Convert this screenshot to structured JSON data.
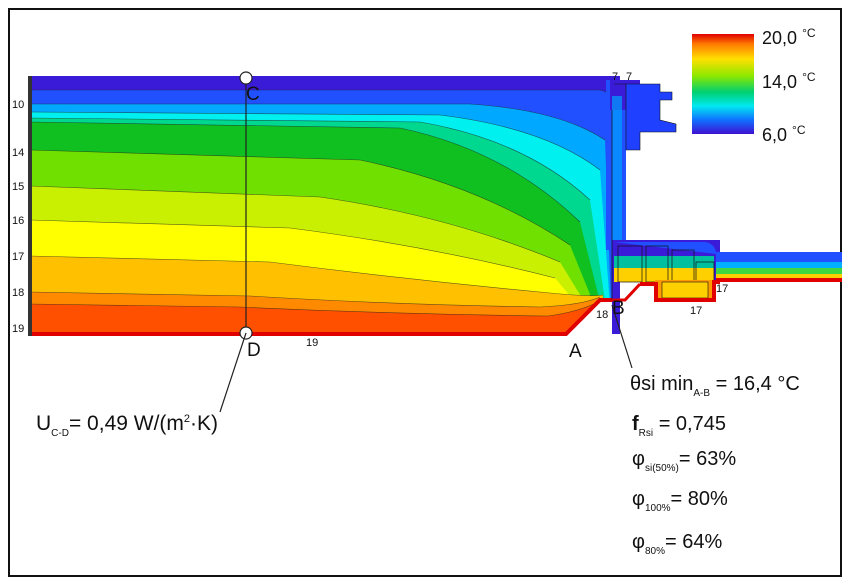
{
  "legend": {
    "max": "20,0",
    "mid": "14,0",
    "min": "6,0",
    "unit": "°C",
    "colors": [
      "#e00000",
      "#ff5000",
      "#ff8a00",
      "#ffc000",
      "#ffff00",
      "#c8f000",
      "#70e000",
      "#10c020",
      "#00d890",
      "#00f0f0",
      "#00a8ff",
      "#2050ff",
      "#3a1bd8"
    ]
  },
  "left_scale": [
    "10",
    "14",
    "15",
    "16",
    "17",
    "18",
    "19"
  ],
  "isotherm_labels": {
    "top_left": "7",
    "top_right": "7",
    "bottom": "19",
    "corner": "18",
    "frame_right": "17",
    "frame_bottom": "17"
  },
  "points": {
    "a": "A",
    "b": "B",
    "c": "C",
    "d": "D"
  },
  "results": {
    "u_label": "U",
    "u_sub": "C-D",
    "u_value": "= 0,49 W/(m",
    "u_exp": "2",
    "u_tail": "·K)",
    "theta_main": "θsi min",
    "theta_sub": "A-B",
    "theta_value": "= 16,4",
    "theta_unit": "°C",
    "f_main": "f",
    "f_sub": "Rsi",
    "f_value": "= 0,745",
    "phi_glyph": "φ",
    "phi1_sub": "si(50%)",
    "phi1_value": "= 63%",
    "phi2_sub": "100%",
    "phi2_value": "= 80%",
    "phi3_sub": "80%",
    "phi3_value": "= 64%"
  }
}
